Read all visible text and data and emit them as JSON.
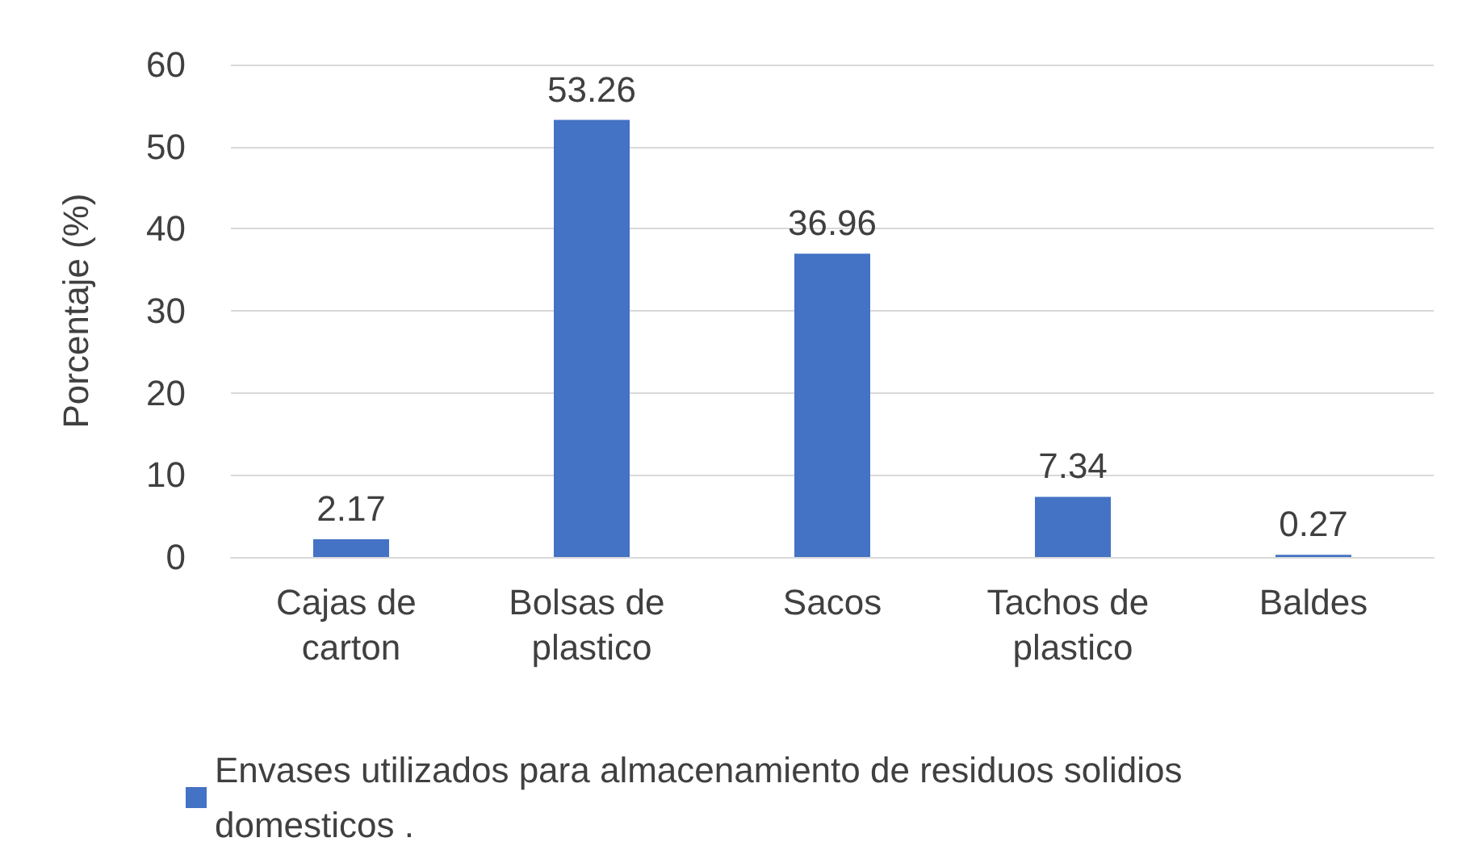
{
  "chart_data": {
    "type": "bar",
    "ylabel": "Porcentaje (%)",
    "categories": [
      "Cajas de carton",
      "Bolsas de plastico",
      "Sacos",
      "Tachos de plastico",
      "Baldes"
    ],
    "series": [
      {
        "name": "Envases utilizados para almacenamiento de residuos solidios domesticos .",
        "color": "#4472c4",
        "values": [
          2.17,
          53.26,
          36.96,
          7.34,
          0.27
        ]
      }
    ],
    "ylim": [
      0,
      60
    ],
    "yticks": [
      0,
      10,
      20,
      30,
      40,
      50,
      60
    ],
    "grid": "y",
    "data_labels": true,
    "legend": "bottom"
  }
}
